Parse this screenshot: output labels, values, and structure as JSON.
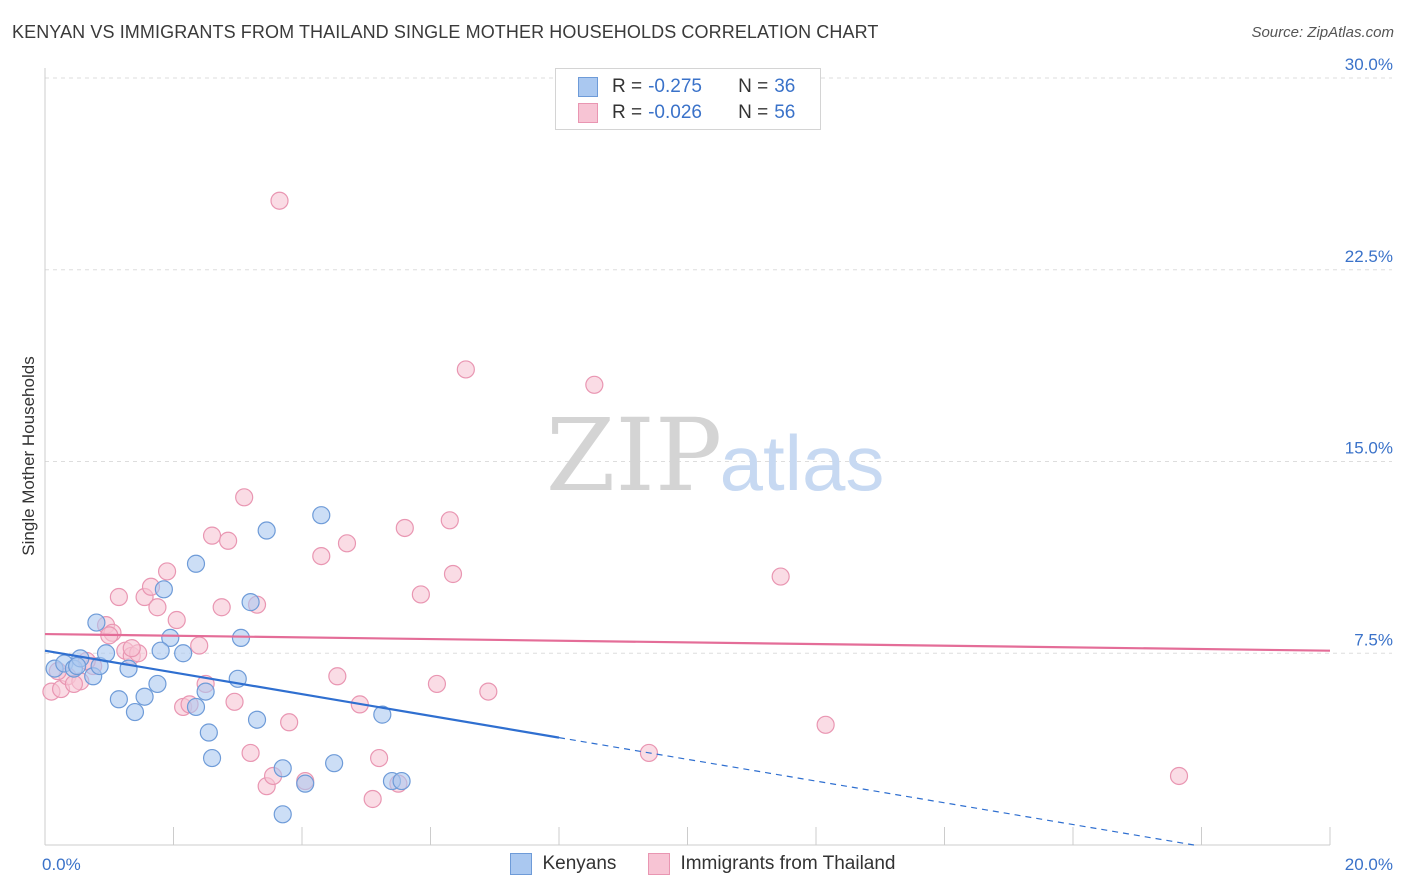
{
  "header": {
    "title": "KENYAN VS IMMIGRANTS FROM THAILAND SINGLE MOTHER HOUSEHOLDS CORRELATION CHART",
    "source": "Source: ZipAtlas.com"
  },
  "watermark": {
    "part1": "ZIP",
    "part2": "atlas"
  },
  "legend_box": {
    "rows": [
      {
        "r_label": "R =",
        "r_value": "-0.275",
        "n_label": "N =",
        "n_value": "36"
      },
      {
        "r_label": "R =",
        "r_value": "-0.026",
        "n_label": "N =",
        "n_value": "56"
      }
    ]
  },
  "colors": {
    "kenyans_fill": "#aac8f0",
    "kenyans_stroke": "#6e9bd8",
    "kenyans_line": "#2f6fd0",
    "thailand_fill": "#f7c4d4",
    "thailand_stroke": "#e996b2",
    "thailand_line": "#e46d98",
    "axis_text": "#3a72c9",
    "grid": "#dddddd"
  },
  "chart_data": {
    "type": "scatter",
    "title": "KENYAN VS IMMIGRANTS FROM THAILAND SINGLE MOTHER HOUSEHOLDS CORRELATION CHART",
    "ylabel": "Single Mother Households",
    "xlabel": "",
    "xlim": [
      0,
      20
    ],
    "ylim": [
      0,
      30
    ],
    "x_tick_labels": [
      "0.0%",
      "20.0%"
    ],
    "y_ticks": [
      7.5,
      15.0,
      22.5,
      30.0
    ],
    "y_tick_labels": [
      "7.5%",
      "15.0%",
      "22.5%",
      "30.0%"
    ],
    "grid": true,
    "legend_placement": "bottom",
    "series": [
      {
        "name": "Kenyans",
        "points": [
          [
            0.15,
            6.9
          ],
          [
            0.3,
            7.1
          ],
          [
            0.45,
            6.9
          ],
          [
            0.55,
            7.3
          ],
          [
            0.75,
            6.6
          ],
          [
            0.85,
            7.0
          ],
          [
            0.8,
            8.7
          ],
          [
            1.15,
            5.7
          ],
          [
            1.3,
            6.9
          ],
          [
            1.4,
            5.2
          ],
          [
            1.55,
            5.8
          ],
          [
            1.75,
            6.3
          ],
          [
            1.85,
            10.0
          ],
          [
            2.15,
            7.5
          ],
          [
            1.95,
            8.1
          ],
          [
            2.35,
            5.4
          ],
          [
            2.35,
            11.0
          ],
          [
            2.55,
            4.4
          ],
          [
            2.6,
            3.4
          ],
          [
            3.05,
            8.1
          ],
          [
            3.2,
            9.5
          ],
          [
            3.3,
            4.9
          ],
          [
            3.45,
            12.3
          ],
          [
            3.7,
            3.0
          ],
          [
            3.7,
            1.2
          ],
          [
            4.5,
            3.2
          ],
          [
            4.05,
            2.4
          ],
          [
            5.4,
            2.5
          ],
          [
            5.55,
            2.5
          ],
          [
            5.25,
            5.1
          ],
          [
            0.95,
            7.5
          ],
          [
            1.8,
            7.6
          ],
          [
            2.5,
            6.0
          ],
          [
            4.3,
            12.9
          ],
          [
            3.0,
            6.5
          ],
          [
            0.5,
            7.0
          ]
        ],
        "trend": {
          "x": [
            0,
            20
          ],
          "y": [
            7.6,
            -0.9
          ],
          "solid_until_x": 8.0
        }
      },
      {
        "name": "Immigrants from Thailand",
        "points": [
          [
            0.1,
            6.0
          ],
          [
            0.25,
            6.1
          ],
          [
            0.35,
            6.6
          ],
          [
            0.55,
            6.4
          ],
          [
            0.75,
            7.0
          ],
          [
            0.95,
            8.6
          ],
          [
            1.05,
            8.3
          ],
          [
            1.15,
            9.7
          ],
          [
            1.25,
            7.6
          ],
          [
            1.35,
            7.4
          ],
          [
            1.45,
            7.5
          ],
          [
            1.55,
            9.7
          ],
          [
            1.65,
            10.1
          ],
          [
            1.75,
            9.3
          ],
          [
            1.9,
            10.7
          ],
          [
            2.05,
            8.8
          ],
          [
            2.15,
            5.4
          ],
          [
            2.25,
            5.5
          ],
          [
            2.4,
            7.8
          ],
          [
            2.5,
            6.3
          ],
          [
            2.6,
            12.1
          ],
          [
            2.75,
            9.3
          ],
          [
            2.85,
            11.9
          ],
          [
            2.95,
            5.6
          ],
          [
            3.1,
            13.6
          ],
          [
            3.2,
            3.6
          ],
          [
            3.3,
            9.4
          ],
          [
            3.45,
            2.3
          ],
          [
            3.55,
            2.7
          ],
          [
            3.65,
            25.2
          ],
          [
            3.8,
            4.8
          ],
          [
            4.05,
            2.5
          ],
          [
            4.3,
            11.3
          ],
          [
            4.55,
            6.6
          ],
          [
            4.7,
            11.8
          ],
          [
            4.9,
            5.5
          ],
          [
            5.1,
            1.8
          ],
          [
            5.2,
            3.4
          ],
          [
            5.5,
            2.4
          ],
          [
            5.6,
            12.4
          ],
          [
            5.85,
            9.8
          ],
          [
            6.1,
            6.3
          ],
          [
            6.3,
            12.7
          ],
          [
            6.35,
            10.6
          ],
          [
            6.55,
            18.6
          ],
          [
            6.9,
            6.0
          ],
          [
            8.55,
            18.0
          ],
          [
            9.4,
            3.6
          ],
          [
            11.45,
            10.5
          ],
          [
            12.15,
            4.7
          ],
          [
            17.65,
            2.7
          ],
          [
            0.2,
            6.8
          ],
          [
            0.45,
            6.3
          ],
          [
            0.65,
            7.2
          ],
          [
            1.0,
            8.2
          ],
          [
            1.35,
            7.7
          ]
        ],
        "trend": {
          "x": [
            0,
            20
          ],
          "y": [
            8.25,
            7.6
          ]
        }
      }
    ]
  }
}
